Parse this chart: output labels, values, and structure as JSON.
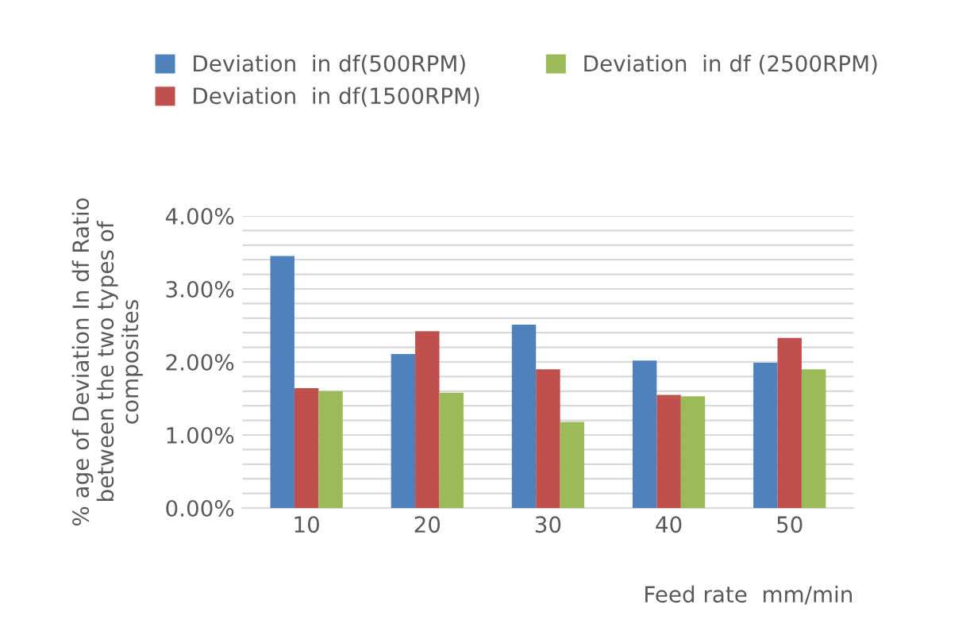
{
  "chart_data": {
    "type": "bar",
    "xlabel": "Feed rate  mm/min",
    "ylabel": "% age of Deviation In df Ratio\nbetween the two types of\ncomposites",
    "categories": [
      "10",
      "20",
      "30",
      "40",
      "50"
    ],
    "series": [
      {
        "name": "Deviation  in df(500RPM)",
        "color": "#4f81bd",
        "values": [
          3.45,
          2.11,
          2.51,
          2.02,
          1.99
        ]
      },
      {
        "name": "Deviation  in df(1500RPM)",
        "color": "#c0504d",
        "values": [
          1.64,
          2.42,
          1.9,
          1.55,
          2.33
        ]
      },
      {
        "name": "Deviation  in df (2500RPM)",
        "color": "#9bbb59",
        "values": [
          1.6,
          1.58,
          1.18,
          1.53,
          1.9
        ]
      }
    ],
    "ylim": [
      0,
      4
    ],
    "yticks": [
      {
        "value": 0,
        "label": "0.00%"
      },
      {
        "value": 0.2,
        "label": null
      },
      {
        "value": 0.4,
        "label": null
      },
      {
        "value": 0.6,
        "label": null
      },
      {
        "value": 0.8,
        "label": null
      },
      {
        "value": 1,
        "label": "1.00%"
      },
      {
        "value": 1.2,
        "label": null
      },
      {
        "value": 1.4,
        "label": null
      },
      {
        "value": 1.6,
        "label": null
      },
      {
        "value": 1.8,
        "label": null
      },
      {
        "value": 2,
        "label": "2.00%"
      },
      {
        "value": 2.2,
        "label": null
      },
      {
        "value": 2.4,
        "label": null
      },
      {
        "value": 2.6,
        "label": null
      },
      {
        "value": 2.8,
        "label": null
      },
      {
        "value": 3,
        "label": "3.00%"
      },
      {
        "value": 3.2,
        "label": null
      },
      {
        "value": 3.4,
        "label": null
      },
      {
        "value": 3.6,
        "label": null
      },
      {
        "value": 3.8,
        "label": null
      },
      {
        "value": 4,
        "label": "4.00%"
      }
    ],
    "grid": "y",
    "legend": "top"
  }
}
